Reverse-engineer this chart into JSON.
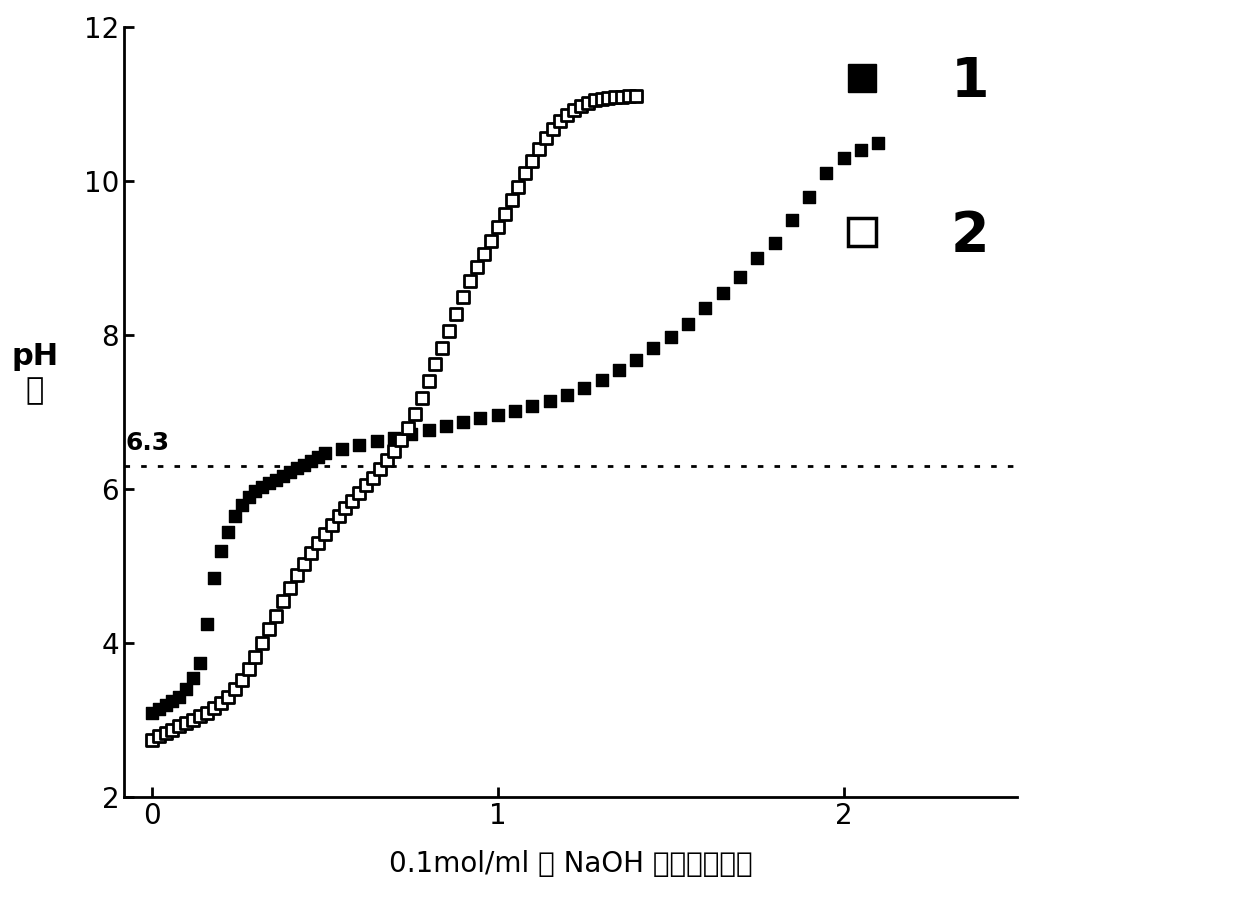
{
  "title": "",
  "xlabel": "0.1mol/ml 的 NaOH 水溶液的体积",
  "ylabel_line1": "pH",
  "ylabel_line2": "値",
  "xlim": [
    -0.08,
    2.5
  ],
  "ylim": [
    2,
    12
  ],
  "yticks": [
    2,
    4,
    6,
    8,
    10,
    12
  ],
  "xticks": [
    0,
    1,
    2
  ],
  "dotted_line_y": 6.3,
  "dotted_line_label": "6.3",
  "series1_x": [
    0.0,
    0.02,
    0.04,
    0.06,
    0.08,
    0.1,
    0.12,
    0.14,
    0.16,
    0.18,
    0.2,
    0.22,
    0.24,
    0.26,
    0.28,
    0.3,
    0.32,
    0.34,
    0.36,
    0.38,
    0.4,
    0.42,
    0.44,
    0.46,
    0.48,
    0.5,
    0.55,
    0.6,
    0.65,
    0.7,
    0.75,
    0.8,
    0.85,
    0.9,
    0.95,
    1.0,
    1.05,
    1.1,
    1.15,
    1.2,
    1.25,
    1.3,
    1.35,
    1.4,
    1.45,
    1.5,
    1.55,
    1.6,
    1.65,
    1.7,
    1.75,
    1.8,
    1.85,
    1.9,
    1.95,
    2.0,
    2.05,
    2.1
  ],
  "series1_y": [
    3.1,
    3.15,
    3.2,
    3.25,
    3.3,
    3.4,
    3.55,
    3.75,
    4.25,
    4.85,
    5.2,
    5.45,
    5.65,
    5.8,
    5.9,
    5.98,
    6.03,
    6.08,
    6.12,
    6.17,
    6.22,
    6.27,
    6.32,
    6.37,
    6.42,
    6.47,
    6.52,
    6.57,
    6.62,
    6.67,
    6.72,
    6.77,
    6.82,
    6.87,
    6.92,
    6.97,
    7.02,
    7.08,
    7.15,
    7.22,
    7.32,
    7.42,
    7.55,
    7.68,
    7.83,
    7.98,
    8.15,
    8.35,
    8.55,
    8.75,
    9.0,
    9.2,
    9.5,
    9.8,
    10.1,
    10.3,
    10.4,
    10.5
  ],
  "series2_x": [
    0.0,
    0.02,
    0.04,
    0.06,
    0.08,
    0.1,
    0.12,
    0.14,
    0.16,
    0.18,
    0.2,
    0.22,
    0.24,
    0.26,
    0.28,
    0.3,
    0.32,
    0.34,
    0.36,
    0.38,
    0.4,
    0.42,
    0.44,
    0.46,
    0.48,
    0.5,
    0.52,
    0.54,
    0.56,
    0.58,
    0.6,
    0.62,
    0.64,
    0.66,
    0.68,
    0.7,
    0.72,
    0.74,
    0.76,
    0.78,
    0.8,
    0.82,
    0.84,
    0.86,
    0.88,
    0.9,
    0.92,
    0.94,
    0.96,
    0.98,
    1.0,
    1.02,
    1.04,
    1.06,
    1.08,
    1.1,
    1.12,
    1.14,
    1.16,
    1.18,
    1.2,
    1.22,
    1.24,
    1.26,
    1.28,
    1.3,
    1.32,
    1.34,
    1.36,
    1.38,
    1.4
  ],
  "series2_y": [
    2.75,
    2.8,
    2.84,
    2.88,
    2.92,
    2.96,
    3.0,
    3.05,
    3.1,
    3.16,
    3.22,
    3.3,
    3.4,
    3.52,
    3.66,
    3.82,
    4.0,
    4.18,
    4.36,
    4.55,
    4.72,
    4.88,
    5.03,
    5.17,
    5.3,
    5.42,
    5.54,
    5.65,
    5.75,
    5.85,
    5.95,
    6.05,
    6.15,
    6.26,
    6.38,
    6.5,
    6.64,
    6.8,
    6.98,
    7.18,
    7.4,
    7.62,
    7.84,
    8.06,
    8.28,
    8.5,
    8.7,
    8.88,
    9.05,
    9.22,
    9.4,
    9.58,
    9.76,
    9.93,
    10.1,
    10.26,
    10.42,
    10.56,
    10.68,
    10.78,
    10.86,
    10.93,
    10.98,
    11.02,
    11.05,
    11.07,
    11.08,
    11.09,
    11.09,
    11.1,
    11.1
  ],
  "legend1_label": "1",
  "legend2_label": "2",
  "marker_size": 9,
  "background_color": "#ffffff",
  "marker_color_filled": "#000000",
  "marker_color_open": "#000000"
}
